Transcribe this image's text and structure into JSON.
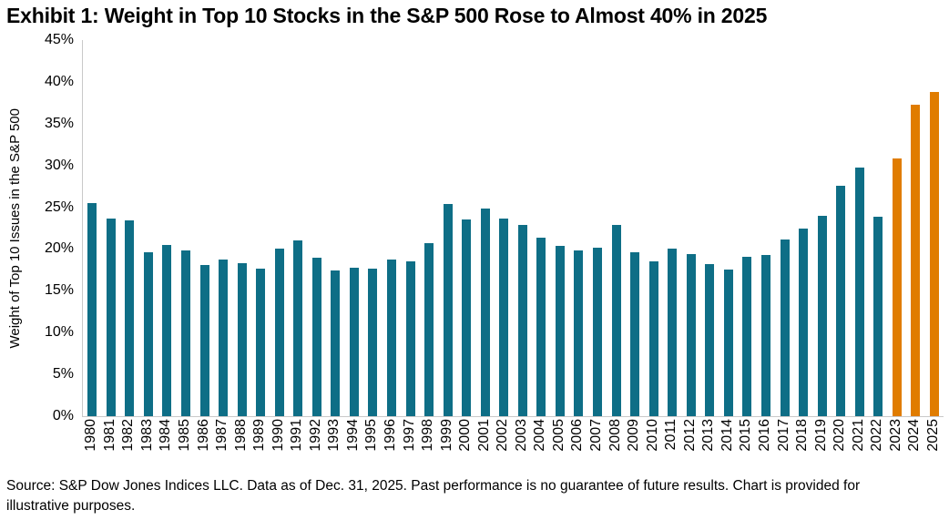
{
  "title": "Exhibit 1: Weight in Top 10 Stocks in the S&P 500 Rose to Almost 40% in 2025",
  "source_note": "Source: S&P Dow Jones Indices LLC. Data as of Dec. 31, 2025. Past performance is no guarantee of future results. Chart is provided for illustrative purposes.",
  "chart_data": {
    "type": "bar",
    "title": "Exhibit 1: Weight in Top 10 Stocks in the S&P 500 Rose to Almost 40% in 2025",
    "xlabel": "",
    "ylabel": "Weight of Top 10 Issues in the S&P 500",
    "ylim": [
      0,
      45
    ],
    "ytick_step": 5,
    "ytick_labels": [
      "0%",
      "5%",
      "10%",
      "15%",
      "20%",
      "25%",
      "30%",
      "35%",
      "40%",
      "45%"
    ],
    "grid": false,
    "legend_position": "none",
    "categories": [
      "1980",
      "1981",
      "1982",
      "1983",
      "1984",
      "1985",
      "1986",
      "1987",
      "1988",
      "1989",
      "1990",
      "1991",
      "1992",
      "1993",
      "1994",
      "1995",
      "1996",
      "1997",
      "1998",
      "1999",
      "2000",
      "2001",
      "2002",
      "2003",
      "2004",
      "2005",
      "2006",
      "2007",
      "2008",
      "2009",
      "2010",
      "2011",
      "2012",
      "2013",
      "2014",
      "2015",
      "2016",
      "2017",
      "2018",
      "2019",
      "2020",
      "2021",
      "2022",
      "2023",
      "2024",
      "2025"
    ],
    "values": [
      25.5,
      23.7,
      23.4,
      19.6,
      20.5,
      19.8,
      18.1,
      18.7,
      18.3,
      17.7,
      20.0,
      21.0,
      19.0,
      17.4,
      17.8,
      17.7,
      18.7,
      18.5,
      20.7,
      25.4,
      23.5,
      24.8,
      23.7,
      22.9,
      21.4,
      20.4,
      19.8,
      20.2,
      22.9,
      19.6,
      18.5,
      20.1,
      19.4,
      18.2,
      17.5,
      19.1,
      19.3,
      21.1,
      22.4,
      24.0,
      27.6,
      29.8,
      23.9,
      30.8,
      37.3,
      38.8
    ],
    "bar_color": "#0e6e86",
    "highlight_color": "#e07c00",
    "highlight_years": [
      "2023",
      "2024",
      "2025"
    ]
  }
}
